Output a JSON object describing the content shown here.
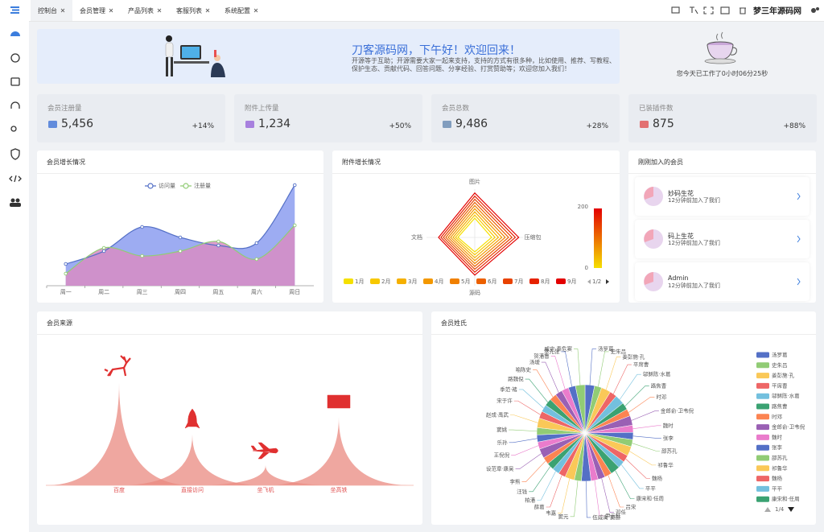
{
  "tabs": [
    "控制台",
    "会员管理",
    "产品列表",
    "客服列表",
    "系统配置"
  ],
  "brand": "梦三年源码网",
  "welcome": {
    "title": "刀客源码网，下午好！欢迎回来！",
    "text": "开源等于互助；开源需要大家一起来支持，支持的方式有很多种，比如使用、推荐、写教程、保护生态、贡献代码、回答问题、分享经验、打赏赞助等；欢迎您加入我们！"
  },
  "work_time": "您今天已工作了0小时06分25秒",
  "stats": [
    {
      "label": "会员注册量",
      "value": "5,456",
      "change": "+14%"
    },
    {
      "label": "附件上传量",
      "value": "1,234",
      "change": "+50%"
    },
    {
      "label": "会员总数",
      "value": "9,486",
      "change": "+28%"
    },
    {
      "label": "已装插件数",
      "value": "875",
      "change": "+88%"
    }
  ],
  "new_members": {
    "title": "刚刚加入的会员",
    "items": [
      {
        "name": "妙码生花",
        "time": "12分钟前加入了我们"
      },
      {
        "name": "码上生花",
        "time": "12分钟前加入了我们"
      },
      {
        "name": "Admin",
        "time": "12分钟前加入了我们"
      }
    ]
  },
  "chart_data": [
    {
      "type": "area",
      "title": "会员增长情况",
      "categories": [
        "周一",
        "周二",
        "周三",
        "周四",
        "周五",
        "周六",
        "周日"
      ],
      "series": [
        {
          "name": "访问量",
          "color": "#5470c6",
          "area_color": "#8c9ef0",
          "values": [
            27,
            43,
            73,
            60,
            50,
            53,
            125
          ]
        },
        {
          "name": "注册量",
          "color": "#91cc75",
          "area_color": "#d88cc4",
          "values": [
            15,
            47,
            37,
            43,
            55,
            33,
            75
          ]
        }
      ],
      "ylim": [
        0,
        130
      ],
      "smooth": true
    },
    {
      "type": "radar",
      "title": "附件增长情况",
      "indicators": [
        "图片",
        "压缩包",
        "源码",
        "文档"
      ],
      "rlim": [
        0,
        200
      ],
      "series": [
        {
          "name": "1月",
          "color": "#f5e000",
          "values": [
            80,
            70,
            60,
            70
          ]
        },
        {
          "name": "2月",
          "color": "#f7c800",
          "values": [
            93,
            84,
            72,
            80
          ]
        },
        {
          "name": "3月",
          "color": "#f5b000",
          "values": [
            106,
            98,
            84,
            90
          ]
        },
        {
          "name": "4月",
          "color": "#f39800",
          "values": [
            119,
            112,
            96,
            100
          ]
        },
        {
          "name": "5月",
          "color": "#f08000",
          "values": [
            132,
            126,
            108,
            110
          ]
        },
        {
          "name": "6月",
          "color": "#ec6000",
          "values": [
            145,
            140,
            120,
            120
          ]
        },
        {
          "name": "7月",
          "color": "#e84200",
          "values": [
            158,
            154,
            132,
            130
          ]
        },
        {
          "name": "8月",
          "color": "#e62200",
          "values": [
            171,
            168,
            144,
            140
          ]
        },
        {
          "name": "9月",
          "color": "#e30000",
          "values": [
            184,
            182,
            156,
            150
          ]
        }
      ],
      "legend_page": "1/2",
      "visual_map": {
        "range": [
          0,
          200
        ],
        "colors": [
          "#f5e000",
          "#e30000"
        ]
      }
    },
    {
      "type": "pictorial",
      "title": "会员来源",
      "categories": [
        "百度",
        "直接访问",
        "坐飞机",
        "坐高铁"
      ],
      "values": [
        128,
        63,
        25,
        85
      ],
      "color": "#ea8a80",
      "ylim": [
        0,
        160
      ]
    },
    {
      "type": "pie",
      "title": "会员姓氏",
      "categories": [
        "汤罗葛",
        "史朱吕",
        "姜彭施·孔",
        "平席曹",
        "邬稣陈·水葛",
        "路焦曹",
        "时邓",
        "金郎俞·卫韦倪",
        "魏时",
        "张李",
        "邵苏孔",
        "祁鲁华",
        "魏杨",
        "平平",
        "康宋和·任周",
        "吕宋",
        "邓任",
        "尹云杜",
        "伍威禹·窦逊",
        "窦元",
        "韦嘉",
        "薛葛",
        "柏潘",
        "汪钱",
        "李熊",
        "设范章·康吴",
        "王倪倪",
        "乐孙",
        "窦姚",
        "赵成·禹武",
        "宋于许",
        "季范·褚",
        "路魏倪",
        "喻陈史",
        "汤瑷",
        "贺潘鲁",
        "常元张",
        "臧史·秦危窦"
      ],
      "values": [
        4,
        3,
        4,
        3,
        4,
        3,
        3,
        4,
        3,
        3,
        3,
        4,
        3,
        3,
        4,
        3,
        3,
        3,
        4,
        3,
        4,
        3,
        3,
        3,
        3,
        4,
        3,
        3,
        3,
        4,
        3,
        3,
        3,
        3,
        3,
        3,
        3,
        4
      ],
      "colors": [
        "#5470c6",
        "#91cc75",
        "#fac858",
        "#ee6666",
        "#73c0de",
        "#3ba272",
        "#fc8452",
        "#9a60b4",
        "#ea7ccc"
      ],
      "legend_count": 15,
      "legend_page": "1/4"
    }
  ]
}
